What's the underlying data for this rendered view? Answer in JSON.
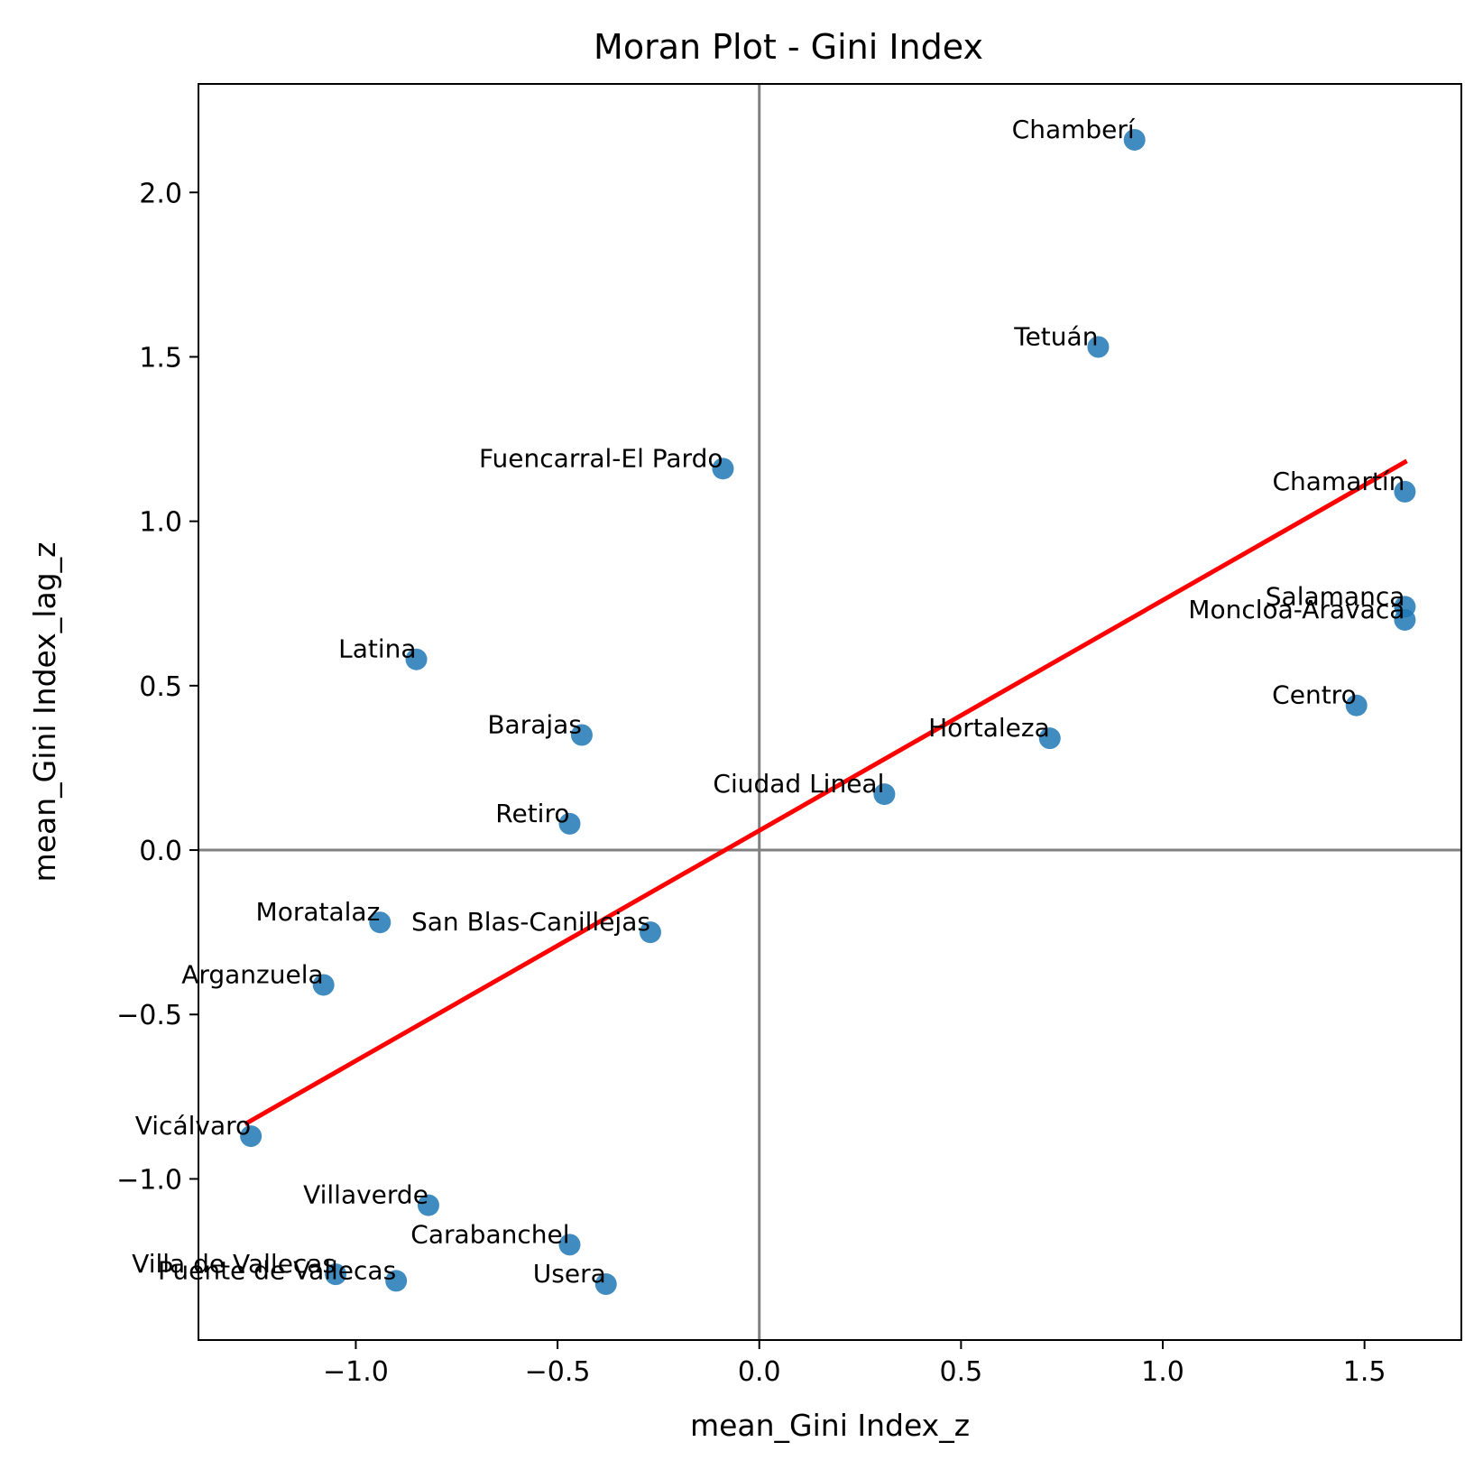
{
  "chart_data": {
    "type": "scatter",
    "title": "Moran Plot - Gini Index",
    "xlabel": "mean_Gini Index_z",
    "ylabel": "mean_Gini Index_lag_z",
    "xlim": [
      -1.39,
      1.74
    ],
    "ylim": [
      -1.49,
      2.33
    ],
    "xticks": [
      -1.0,
      -0.5,
      0.0,
      0.5,
      1.0,
      1.5
    ],
    "xtick_labels": [
      "−1.0",
      "−0.5",
      "0.0",
      "0.5",
      "1.0",
      "1.5"
    ],
    "yticks": [
      -1.0,
      -0.5,
      0.0,
      0.5,
      1.0,
      1.5,
      2.0
    ],
    "ytick_labels": [
      "−1.0",
      "−0.5",
      "0.0",
      "0.5",
      "1.0",
      "1.5",
      "2.0"
    ],
    "grid": false,
    "reference_lines": {
      "x": 0,
      "y": 0,
      "color": "#808080"
    },
    "point_color": "#1f77b4",
    "regression_line": {
      "color": "#ff0000",
      "points": [
        [
          -1.27,
          -0.83
        ],
        [
          1.6,
          1.18
        ]
      ]
    },
    "points": [
      {
        "label": "Chamberí",
        "x": 0.93,
        "y": 2.16
      },
      {
        "label": "Tetuán",
        "x": 0.84,
        "y": 1.53
      },
      {
        "label": "Fuencarral-El Pardo",
        "x": -0.09,
        "y": 1.16
      },
      {
        "label": "Chamartín",
        "x": 1.6,
        "y": 1.09
      },
      {
        "label": "Salamanca",
        "x": 1.6,
        "y": 0.74
      },
      {
        "label": "Moncloa-Aravaca",
        "x": 1.6,
        "y": 0.7
      },
      {
        "label": "Latina",
        "x": -0.85,
        "y": 0.58
      },
      {
        "label": "Centro",
        "x": 1.48,
        "y": 0.44
      },
      {
        "label": "Barajas",
        "x": -0.44,
        "y": 0.35
      },
      {
        "label": "Hortaleza",
        "x": 0.72,
        "y": 0.34
      },
      {
        "label": "Ciudad Lineal",
        "x": 0.31,
        "y": 0.17
      },
      {
        "label": "Retiro",
        "x": -0.47,
        "y": 0.08
      },
      {
        "label": "Moratalaz",
        "x": -0.94,
        "y": -0.22
      },
      {
        "label": "San Blas-Canillejas",
        "x": -0.27,
        "y": -0.25
      },
      {
        "label": "Arganzuela",
        "x": -1.08,
        "y": -0.41
      },
      {
        "label": "Vicálvaro",
        "x": -1.26,
        "y": -0.87
      },
      {
        "label": "Villaverde",
        "x": -0.82,
        "y": -1.08
      },
      {
        "label": "Carabanchel",
        "x": -0.47,
        "y": -1.2
      },
      {
        "label": "Villa de Vallecas",
        "x": -1.05,
        "y": -1.29
      },
      {
        "label": "Puente de Vallecas",
        "x": -0.9,
        "y": -1.31
      },
      {
        "label": "Usera",
        "x": -0.38,
        "y": -1.32
      }
    ]
  }
}
